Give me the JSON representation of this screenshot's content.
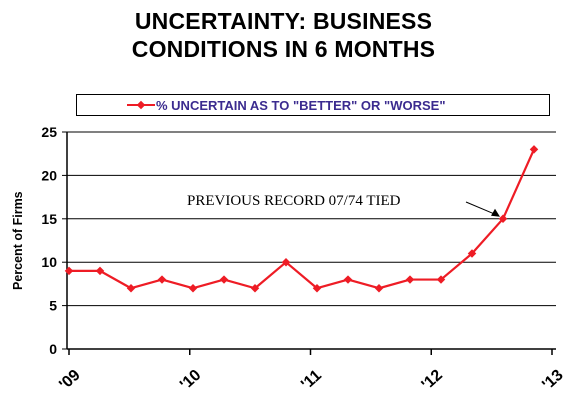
{
  "title_line1": "UNCERTAINTY:   BUSINESS",
  "title_line2": "CONDITIONS  IN  6  MONTHS",
  "colors": {
    "series": "#ee1c25",
    "legend_text": "#3b2b8f",
    "grid": "#000000"
  },
  "chart_data": {
    "type": "line",
    "ylabel": "Percent of Firms",
    "ylim": [
      0,
      25
    ],
    "y_ticks": [
      0,
      5,
      10,
      15,
      20,
      25
    ],
    "grid": true,
    "legend_position": "top",
    "x_tick_labels": [
      "'09",
      "'10",
      "'11",
      "'12",
      "'13"
    ],
    "series": [
      {
        "name": "% UNCERTAIN AS TO \"BETTER\" OR \"WORSE\"",
        "values": [
          9,
          9,
          7,
          8,
          7,
          8,
          7,
          10,
          7,
          8,
          7,
          8,
          8,
          11,
          15,
          23
        ]
      }
    ],
    "annotation": {
      "text": "PREVIOUS RECORD 07/74 TIED",
      "point_index": 14
    }
  }
}
